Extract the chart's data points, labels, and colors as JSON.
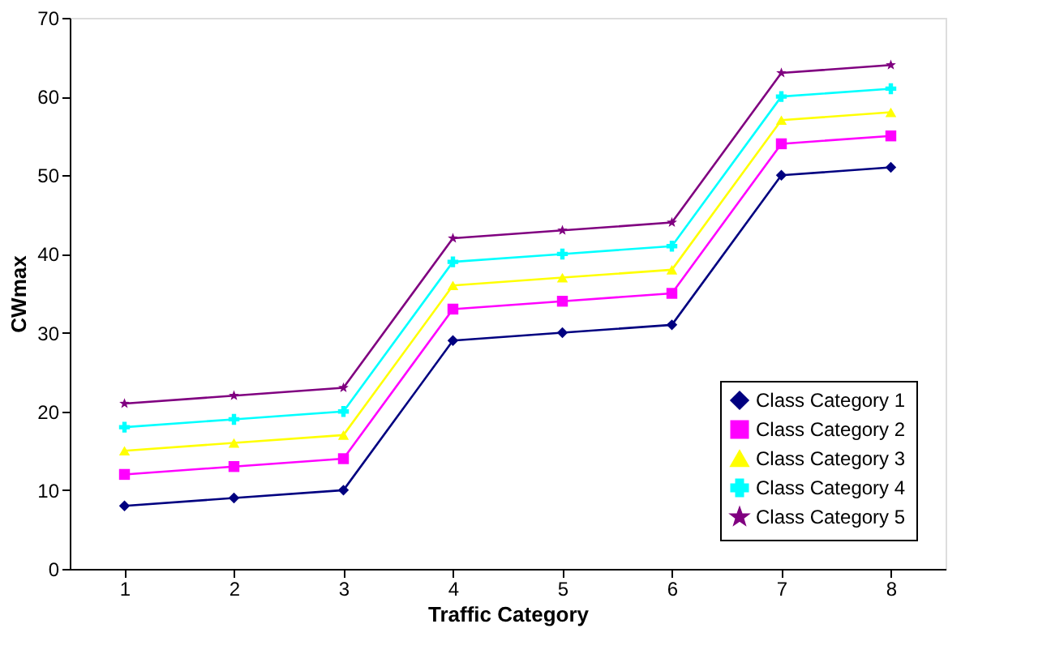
{
  "chart_data": {
    "type": "line",
    "xlabel": "Traffic Category",
    "ylabel": "CWmax",
    "categories": [
      "1",
      "2",
      "3",
      "4",
      "5",
      "6",
      "7",
      "8"
    ],
    "series": [
      {
        "name": "Class Category 1",
        "color": "#000080",
        "marker": "diamond",
        "values": [
          8,
          9,
          10,
          29,
          30,
          31,
          50,
          51
        ]
      },
      {
        "name": "Class Category 2",
        "color": "#ff00ff",
        "marker": "square",
        "values": [
          12,
          13,
          14,
          33,
          34,
          35,
          54,
          55
        ]
      },
      {
        "name": "Class Category 3",
        "color": "#ffff00",
        "marker": "triangle",
        "values": [
          15,
          16,
          17,
          36,
          37,
          38,
          57,
          58
        ]
      },
      {
        "name": "Class Category 4",
        "color": "#00ffff",
        "marker": "cross",
        "values": [
          18,
          19,
          20,
          39,
          40,
          41,
          60,
          61
        ]
      },
      {
        "name": "Class Category 5",
        "color": "#800080",
        "marker": "star",
        "values": [
          21,
          22,
          23,
          42,
          43,
          44,
          63,
          64
        ]
      }
    ],
    "ylim": [
      0,
      70
    ],
    "yticks": [
      0,
      10,
      20,
      30,
      40,
      50,
      60,
      70
    ],
    "grid": false,
    "legend": "bottom right",
    "line_style": "solid"
  }
}
